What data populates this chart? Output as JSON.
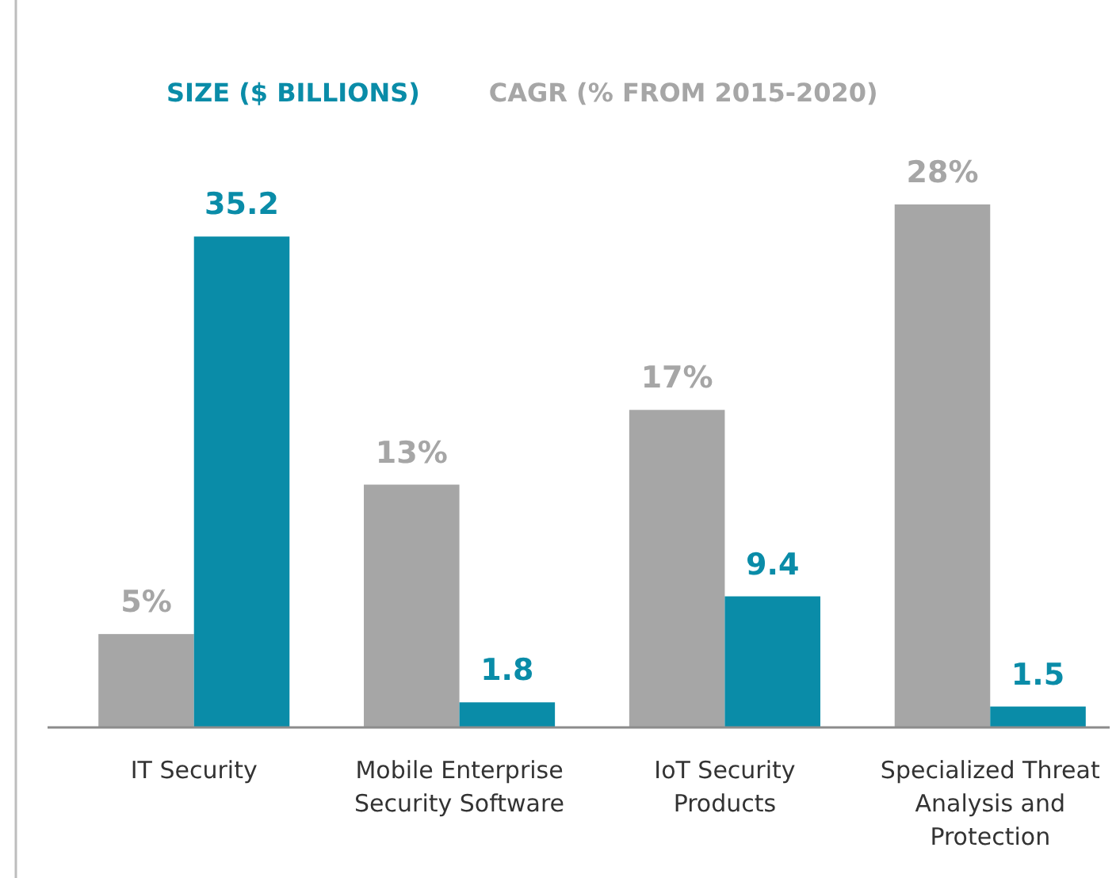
{
  "chart_data": {
    "type": "bar",
    "categories": [
      "IT Security",
      "Mobile Enterprise Security Software",
      "IoT Security Products",
      "Specialized Threat Analysis and Protection"
    ],
    "series": [
      {
        "name": "CAGR (% FROM 2015-2020)",
        "color": "#a6a6a6",
        "values": [
          5,
          13,
          17,
          28
        ],
        "value_labels": [
          "5%",
          "13%",
          "17%",
          "28%"
        ]
      },
      {
        "name": "SIZE ($ BILLIONS)",
        "color": "#0a8ca8",
        "values": [
          35.2,
          1.8,
          9.4,
          1.5
        ],
        "axis": "y2"
      }
    ],
    "ylim": [
      0,
      28
    ],
    "y2lim": [
      0,
      37.5
    ],
    "tick_labels": "x",
    "legend": "top left",
    "data_labels": true
  }
}
